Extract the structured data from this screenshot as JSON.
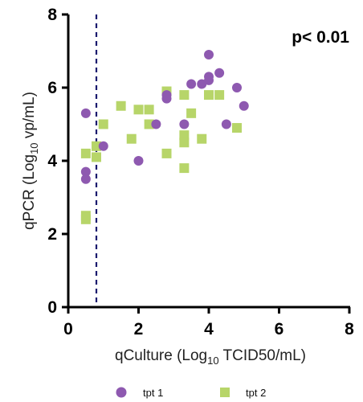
{
  "chart_data": {
    "type": "scatter",
    "xlabel": "qCulture (Log10 TCID50/mL)",
    "xlabel_parts": {
      "pre": "qCulture (Log",
      "sub": "10",
      "post": " TCID50/mL)"
    },
    "ylabel": "qPCR (Log10 vp/mL)",
    "ylabel_parts": {
      "pre": "qPCR (Log",
      "sub": "10",
      "post": " vp/mL)"
    },
    "xlim": [
      0,
      8
    ],
    "ylim": [
      0,
      8
    ],
    "xticks": [
      "0",
      "2",
      "4",
      "6",
      "8"
    ],
    "yticks": [
      "0",
      "2",
      "4",
      "6",
      "8"
    ],
    "grid": false,
    "legend_position": "bottom",
    "annotation": "p< 0.01",
    "reference_line": {
      "axis": "x",
      "value": 0.8,
      "style": "dashed",
      "color": "#1a1a6e"
    },
    "series": [
      {
        "name": "tpt 1",
        "marker": "circle",
        "color": "#8e59b0",
        "points": [
          [
            0.5,
            5.3
          ],
          [
            0.5,
            3.7
          ],
          [
            0.5,
            3.5
          ],
          [
            1.0,
            4.4
          ],
          [
            2.0,
            4.0
          ],
          [
            2.5,
            5.0
          ],
          [
            2.8,
            5.8
          ],
          [
            2.8,
            5.7
          ],
          [
            3.3,
            5.0
          ],
          [
            3.5,
            6.1
          ],
          [
            3.8,
            6.1
          ],
          [
            4.0,
            6.2
          ],
          [
            4.0,
            6.3
          ],
          [
            4.0,
            6.9
          ],
          [
            4.3,
            6.4
          ],
          [
            4.5,
            5.0
          ],
          [
            4.8,
            6.0
          ],
          [
            5.0,
            5.5
          ]
        ]
      },
      {
        "name": "tpt 2",
        "marker": "square",
        "color": "#b7d569",
        "points": [
          [
            0.5,
            4.2
          ],
          [
            0.5,
            2.5
          ],
          [
            0.5,
            2.4
          ],
          [
            0.8,
            4.4
          ],
          [
            0.8,
            4.1
          ],
          [
            1.0,
            5.0
          ],
          [
            1.5,
            5.5
          ],
          [
            1.8,
            4.6
          ],
          [
            2.0,
            5.4
          ],
          [
            2.3,
            5.4
          ],
          [
            2.3,
            5.0
          ],
          [
            2.8,
            5.9
          ],
          [
            2.8,
            4.2
          ],
          [
            3.3,
            4.7
          ],
          [
            3.3,
            4.5
          ],
          [
            3.3,
            5.8
          ],
          [
            3.3,
            3.8
          ],
          [
            3.5,
            5.3
          ],
          [
            3.8,
            4.6
          ],
          [
            4.0,
            5.8
          ],
          [
            4.3,
            5.8
          ],
          [
            4.8,
            4.9
          ]
        ]
      }
    ]
  }
}
